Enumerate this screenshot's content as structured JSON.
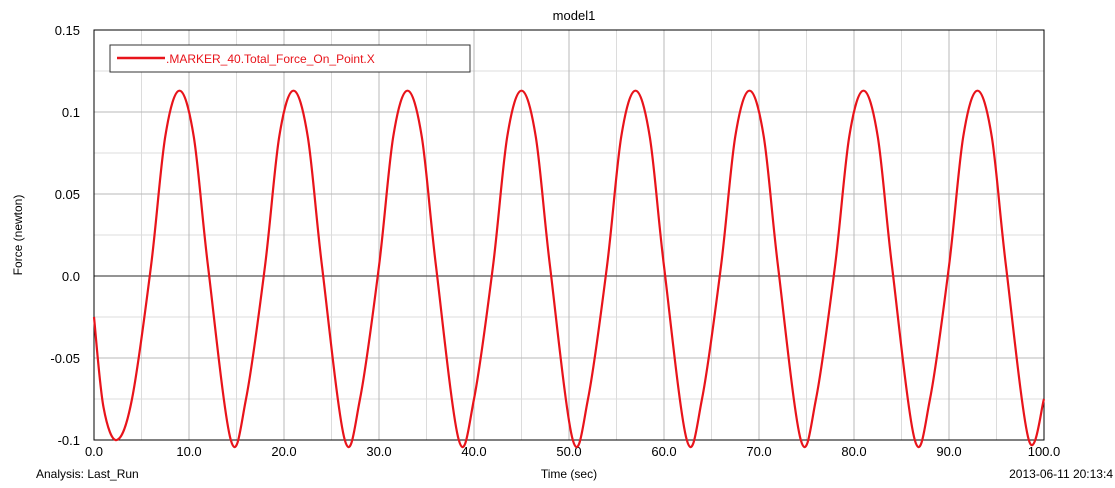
{
  "chart_data": {
    "type": "line",
    "title": "model1",
    "xlabel": "Time (sec)",
    "ylabel": "Force (newton)",
    "xlim": [
      0,
      100
    ],
    "ylim": [
      -0.1,
      0.15
    ],
    "x_ticks": [
      0,
      10,
      20,
      30,
      40,
      50,
      60,
      70,
      80,
      90,
      100
    ],
    "x_tick_labels": [
      "0.0",
      "10.0",
      "20.0",
      "30.0",
      "40.0",
      "50.0",
      "60.0",
      "70.0",
      "80.0",
      "90.0",
      "100.0"
    ],
    "y_ticks": [
      -0.1,
      -0.05,
      0,
      0.05,
      0.1,
      0.15
    ],
    "y_tick_labels": [
      "-0.1",
      "-0.05",
      "0.0",
      "0.05",
      "0.1",
      "0.15"
    ],
    "grid": true,
    "legend_position": "top-left",
    "analysis_label": "Analysis:  Last_Run",
    "timestamp": "2013-06-11 20:13:4",
    "series": [
      {
        "name": ".MARKER_40.Total_Force_On_Point.X",
        "color": "#e8141b",
        "x": [
          0,
          1,
          2.4,
          4,
          6,
          7.5,
          9,
          10.5,
          12,
          14.4,
          16,
          18,
          19.5,
          21,
          22.5,
          24,
          26.4,
          28,
          30,
          31.5,
          33,
          34.5,
          36,
          38.4,
          40,
          42,
          43.5,
          45,
          46.5,
          48,
          50.4,
          52,
          54,
          55.5,
          57,
          58.5,
          60,
          62.4,
          64,
          66,
          67.5,
          69,
          70.5,
          72,
          74.4,
          76,
          78,
          79.5,
          81,
          82.5,
          84,
          86.4,
          88,
          90,
          91.5,
          93,
          94.5,
          96,
          98.4,
          100
        ],
        "y": [
          -0.025,
          -0.08,
          -0.1,
          -0.075,
          0.006,
          0.085,
          0.113,
          0.085,
          0.006,
          -0.1,
          -0.075,
          0.006,
          0.085,
          0.113,
          0.085,
          0.006,
          -0.1,
          -0.075,
          0.006,
          0.085,
          0.113,
          0.085,
          0.006,
          -0.1,
          -0.075,
          0.006,
          0.085,
          0.113,
          0.085,
          0.006,
          -0.1,
          -0.075,
          0.006,
          0.085,
          0.113,
          0.085,
          0.006,
          -0.1,
          -0.075,
          0.006,
          0.085,
          0.113,
          0.085,
          0.006,
          -0.1,
          -0.075,
          0.006,
          0.085,
          0.113,
          0.085,
          0.006,
          -0.1,
          -0.075,
          0.006,
          0.085,
          0.113,
          0.085,
          0.006,
          -0.1,
          -0.075
        ]
      }
    ]
  }
}
